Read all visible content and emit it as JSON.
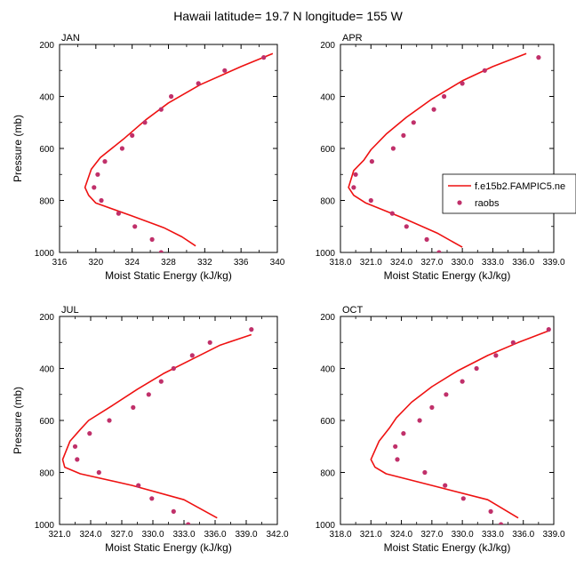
{
  "figure_title": "Hawaii  latitude= 19.7 N longitude= 155 W",
  "colors": {
    "model": "#ee1111",
    "obs": "#c0306a",
    "axis": "#000000"
  },
  "legend": {
    "model_label": "f.e15b2.FAMPIC5.ne",
    "obs_label": "raobs"
  },
  "chart_data": [
    {
      "type": "line",
      "panel": "JAN",
      "xlabel": "Moist Static Energy (kJ/kg)",
      "ylabel": "Pressure (mb)",
      "xlim": [
        316,
        340
      ],
      "ylim": [
        1000,
        200
      ],
      "y_reversed": true,
      "xticks": [
        316,
        320,
        324,
        328,
        332,
        336,
        340
      ],
      "xticklabels": [
        "316",
        "320",
        "324",
        "328",
        "332",
        "336",
        "340"
      ],
      "yticks": [
        200,
        400,
        600,
        800,
        1000
      ],
      "yticklabels": [
        "200",
        "400",
        "600",
        "800",
        "1000"
      ],
      "grid": false,
      "legend": false,
      "series": [
        {
          "kind": "line",
          "x": [
            339.5,
            336.0,
            331.5,
            328.0,
            325.5,
            323.0,
            320.5,
            319.5,
            318.8,
            319.2,
            320.0,
            324.0,
            327.5,
            329.5,
            331.0
          ],
          "y": [
            235,
            285,
            355,
            425,
            490,
            565,
            635,
            680,
            750,
            780,
            810,
            860,
            905,
            940,
            975
          ]
        },
        {
          "kind": "scatter",
          "name": "raobs",
          "x": [
            338.5,
            334.2,
            331.3,
            328.3,
            327.2,
            325.4,
            324.0,
            322.9,
            321.0,
            320.2,
            320.6,
            319.8,
            322.5,
            324.3,
            326.2,
            327.2
          ],
          "y": [
            250,
            300,
            350,
            400,
            450,
            500,
            550,
            600,
            650,
            700,
            800,
            750,
            850,
            900,
            950,
            1000
          ]
        }
      ]
    },
    {
      "type": "line",
      "panel": "APR",
      "xlabel": "Moist Static Energy (kJ/kg)",
      "ylabel": "Pressure (mb)",
      "xlim": [
        318,
        339
      ],
      "ylim": [
        1000,
        200
      ],
      "y_reversed": true,
      "xticks": [
        318,
        321,
        324,
        327,
        330,
        333,
        336,
        339
      ],
      "xticklabels": [
        "318.0",
        "321.0",
        "324.0",
        "327.0",
        "330.0",
        "333.0",
        "336.0",
        "339.0"
      ],
      "yticks": [
        200,
        400,
        600,
        800,
        1000
      ],
      "yticklabels": [
        "200",
        "400",
        "600",
        "800",
        "1000"
      ],
      "grid": false,
      "legend": true,
      "series": [
        {
          "kind": "line",
          "name": "f.e15b2.FAMPIC5.ne",
          "x": [
            336.3,
            333.0,
            330.0,
            327.0,
            324.5,
            322.5,
            321.0,
            320.3,
            319.3,
            318.8,
            319.3,
            320.5,
            324.0,
            327.5,
            330.0
          ],
          "y": [
            235,
            285,
            340,
            410,
            480,
            545,
            605,
            645,
            685,
            750,
            780,
            810,
            865,
            925,
            980
          ]
        },
        {
          "kind": "scatter",
          "name": "raobs",
          "x": [
            337.5,
            332.2,
            330.0,
            328.2,
            327.2,
            325.2,
            324.2,
            323.2,
            321.1,
            319.5,
            319.3,
            321.0,
            323.1,
            324.5,
            326.5,
            327.7
          ],
          "y": [
            250,
            300,
            350,
            400,
            450,
            500,
            550,
            600,
            650,
            700,
            750,
            800,
            850,
            900,
            950,
            1000
          ]
        }
      ]
    },
    {
      "type": "line",
      "panel": "JUL",
      "xlabel": "Moist Static Energy (kJ/kg)",
      "ylabel": "Pressure (mb)",
      "xlim": [
        321,
        342
      ],
      "ylim": [
        1000,
        200
      ],
      "y_reversed": true,
      "xticks": [
        321,
        324,
        327,
        330,
        333,
        336,
        339,
        342
      ],
      "xticklabels": [
        "321.0",
        "324.0",
        "327.0",
        "330.0",
        "333.0",
        "336.0",
        "339.0",
        "342.0"
      ],
      "yticks": [
        200,
        400,
        600,
        800,
        1000
      ],
      "yticklabels": [
        "200",
        "400",
        "600",
        "800",
        "1000"
      ],
      "grid": false,
      "legend": false,
      "series": [
        {
          "kind": "line",
          "x": [
            339.5,
            336.5,
            334.0,
            331.0,
            328.5,
            326.0,
            323.8,
            323.0,
            322.0,
            321.3,
            321.5,
            323.0,
            328.0,
            333.0,
            336.2
          ],
          "y": [
            270,
            310,
            360,
            420,
            480,
            545,
            600,
            635,
            680,
            750,
            780,
            805,
            850,
            905,
            975
          ]
        },
        {
          "kind": "scatter",
          "name": "raobs",
          "x": [
            339.5,
            335.5,
            333.8,
            332.0,
            330.8,
            329.6,
            328.1,
            325.8,
            323.9,
            322.5,
            322.7,
            324.8,
            328.6,
            329.9,
            332.0,
            333.4
          ],
          "y": [
            250,
            300,
            350,
            400,
            450,
            500,
            550,
            600,
            650,
            700,
            750,
            800,
            850,
            900,
            950,
            1000
          ]
        }
      ]
    },
    {
      "type": "line",
      "panel": "OCT",
      "xlabel": "Moist Static Energy (kJ/kg)",
      "ylabel": "Pressure (mb)",
      "xlim": [
        318,
        339
      ],
      "ylim": [
        1000,
        200
      ],
      "y_reversed": true,
      "xticks": [
        318,
        321,
        324,
        327,
        330,
        333,
        336,
        339
      ],
      "xticklabels": [
        "318.0",
        "321.0",
        "324.0",
        "327.0",
        "330.0",
        "333.0",
        "336.0",
        "339.0"
      ],
      "yticks": [
        200,
        400,
        600,
        800,
        1000
      ],
      "yticklabels": [
        "200",
        "400",
        "600",
        "800",
        "1000"
      ],
      "grid": false,
      "legend": false,
      "series": [
        {
          "kind": "line",
          "x": [
            338.5,
            335.5,
            332.5,
            329.5,
            327.0,
            325.0,
            323.5,
            322.8,
            321.8,
            321.0,
            321.4,
            322.5,
            327.0,
            332.5,
            335.5
          ],
          "y": [
            255,
            300,
            350,
            410,
            470,
            530,
            590,
            630,
            680,
            750,
            780,
            805,
            850,
            905,
            975
          ]
        },
        {
          "kind": "scatter",
          "name": "raobs",
          "x": [
            338.5,
            335.0,
            333.3,
            331.4,
            330.0,
            328.4,
            327.0,
            325.8,
            324.2,
            323.4,
            323.6,
            326.3,
            328.3,
            330.1,
            332.8,
            333.8
          ],
          "y": [
            250,
            300,
            350,
            400,
            450,
            500,
            550,
            600,
            650,
            700,
            750,
            800,
            850,
            900,
            950,
            1000
          ]
        }
      ]
    }
  ]
}
